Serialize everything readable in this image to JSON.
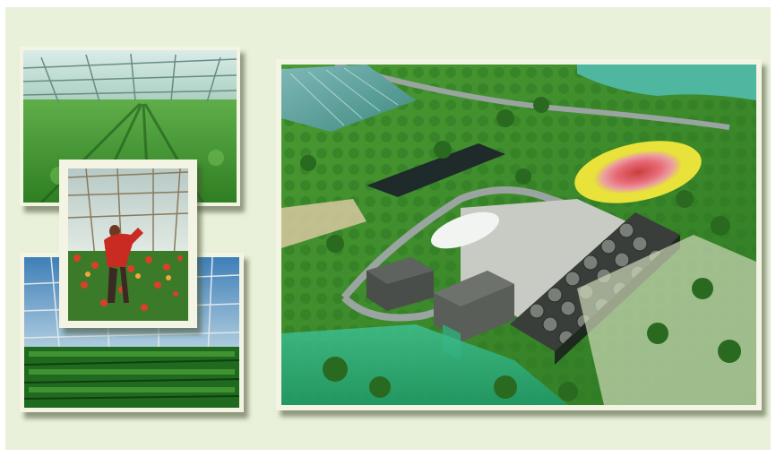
{
  "scene": {
    "photos": [
      {
        "id": "greenhouse-lettuce-rows",
        "icon": "greenhouse-photo"
      },
      {
        "id": "greenhouse-worker-flowers",
        "icon": "worker-photo"
      },
      {
        "id": "greenhouse-seedling-rows",
        "icon": "greenhouse-photo"
      },
      {
        "id": "geothermal-facility-aerial-render",
        "icon": "aerial-render"
      }
    ],
    "colors": {
      "background": "#e9f1da",
      "frame": "#f4f4e4",
      "foliage": "#3f8f2e",
      "greenhouse_glass": "#9fc9d0",
      "pond": "#1f2a2a",
      "hotspot_yellow": "#e8e23a",
      "hotspot_red": "#e0505a"
    }
  }
}
